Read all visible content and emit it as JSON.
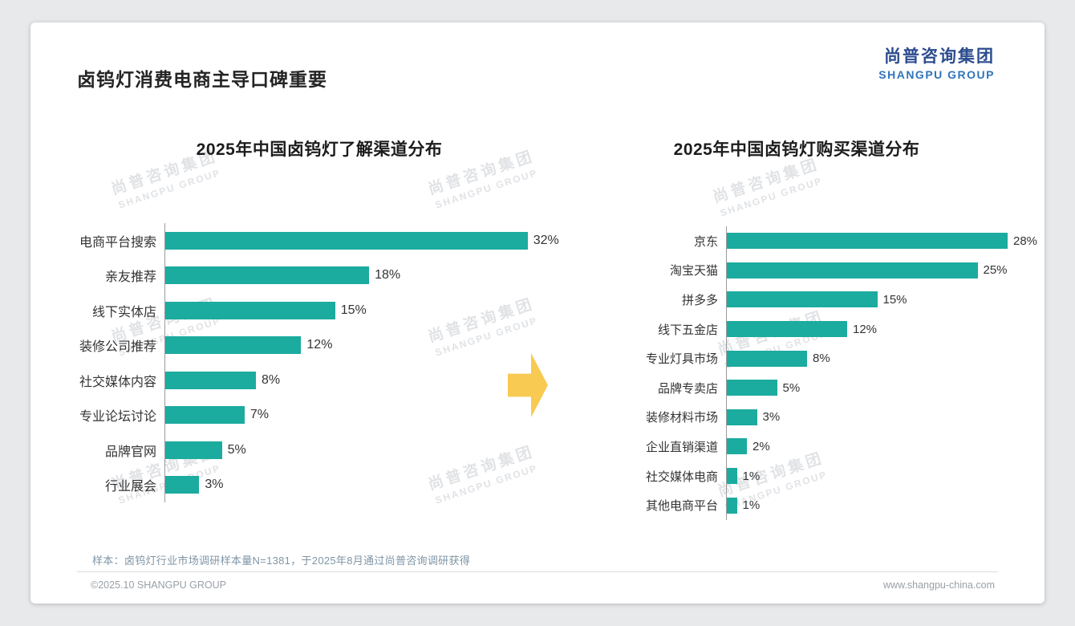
{
  "page": {
    "title": "卤钨灯消费电商主导口碑重要",
    "logo": {
      "cn": "尚普咨询集团",
      "en": "SHANGPU GROUP"
    },
    "watermark": {
      "cn": "尚普咨询集团",
      "en": "SHANGPU GROUP"
    },
    "footnote": "样本：卤钨灯行业市场调研样本量N=1381，于2025年8月通过尚普咨询调研获得",
    "footer_left": "©2025.10 SHANGPU GROUP",
    "footer_right": "www.shangpu-china.com"
  },
  "colors": {
    "bar": "#1bab9f",
    "arrow": "#f8ca52",
    "logo_cn": "#2c4c8e",
    "logo_en": "#2f74bc"
  },
  "chart_data": [
    {
      "type": "bar",
      "orientation": "horizontal",
      "title": "2025年中国卤钨灯了解渠道分布",
      "categories": [
        "电商平台搜索",
        "亲友推荐",
        "线下实体店",
        "装修公司推荐",
        "社交媒体内容",
        "专业论坛讨论",
        "品牌官网",
        "行业展会"
      ],
      "values": [
        32,
        18,
        15,
        12,
        8,
        7,
        5,
        3
      ],
      "unit": "%",
      "xlim": [
        0,
        34
      ],
      "grid": false,
      "legend": false
    },
    {
      "type": "bar",
      "orientation": "horizontal",
      "title": "2025年中国卤钨灯购买渠道分布",
      "categories": [
        "京东",
        "淘宝天猫",
        "拼多多",
        "线下五金店",
        "专业灯具市场",
        "品牌专卖店",
        "装修材料市场",
        "企业直销渠道",
        "社交媒体电商",
        "其他电商平台"
      ],
      "values": [
        28,
        25,
        15,
        12,
        8,
        5,
        3,
        2,
        1,
        1
      ],
      "unit": "%",
      "xlim": [
        0,
        30
      ],
      "grid": false,
      "legend": false
    }
  ]
}
